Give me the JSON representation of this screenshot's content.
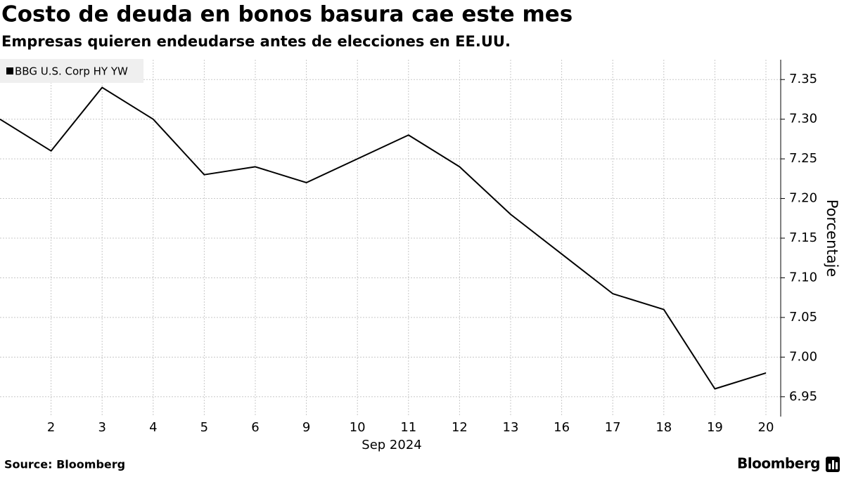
{
  "chart_data": {
    "type": "line",
    "title": "Costo de deuda en bonos basura cae este mes",
    "subtitle": "Empresas quieren endeudarse antes de elecciones en EE.UU.",
    "x_sublabel": "Sep 2024",
    "y_label": "Porcentaje",
    "source": "Source: Bloomberg",
    "brand": "Bloomberg",
    "categories": [
      null,
      "2",
      "3",
      "4",
      "5",
      "6",
      "9",
      "10",
      "11",
      "12",
      "13",
      "16",
      "17",
      "18",
      "19",
      "20"
    ],
    "series": [
      {
        "name": "BBG U.S. Corp HY YW",
        "color": "#000000",
        "values": [
          7.3,
          7.26,
          7.34,
          7.3,
          7.23,
          7.24,
          7.22,
          7.25,
          7.28,
          7.24,
          7.18,
          7.13,
          7.08,
          7.06,
          6.96,
          6.98
        ]
      }
    ],
    "ylim": [
      6.925,
      7.375
    ],
    "yticks": [
      6.95,
      {
        "value": 7.0,
        "label": "7.00"
      },
      7.05,
      {
        "value": 7.1,
        "label": "7.10"
      },
      7.15,
      {
        "value": 7.2,
        "label": "7.20"
      },
      7.25,
      {
        "value": 7.3,
        "label": "7.30"
      },
      7.35
    ],
    "grid": true,
    "legend": "top-left"
  }
}
